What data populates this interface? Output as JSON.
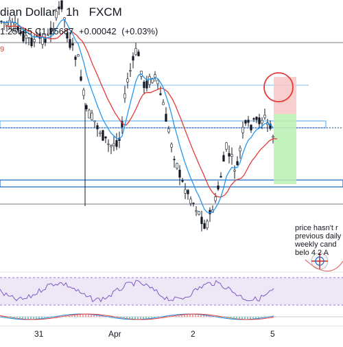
{
  "header": {
    "title": "dian Dollar",
    "interval": "1h",
    "source": "FXCM"
  },
  "ohlc": {
    "low": "1.25645",
    "close_label": "C",
    "close": "1.25687",
    "change": "+0.00042",
    "change_pct": "(+0.03%)"
  },
  "ma_label": "9",
  "note": {
    "lines": [
      "price hasn't r",
      "previous daily",
      "weekly cand",
      "belo 4 2  A"
    ]
  },
  "xaxis": {
    "ticks": [
      "31",
      "Apr",
      "2",
      "5"
    ]
  },
  "colors": {
    "candle": "#131722",
    "ma_red": "#e53935",
    "ma_blue": "#2196f3",
    "level_line": "#2962ff",
    "rsi_band": "#7e57c2",
    "stop_zone": "#f7c5c5",
    "target_zone": "#b9f0b0",
    "circle": "#e53935"
  }
}
